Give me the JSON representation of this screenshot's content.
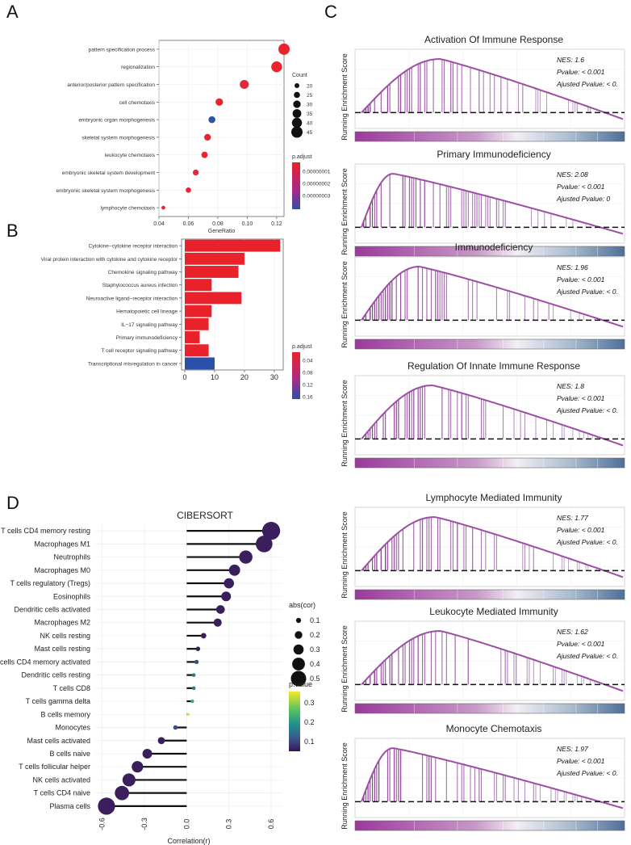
{
  "panels": {
    "a": "A",
    "b": "B",
    "c": "C",
    "d": "D"
  },
  "chart_data": [
    {
      "id": "A",
      "type": "scatter",
      "title": "",
      "xlabel": "GeneRatio",
      "ylabel": "",
      "xlim": [
        0.04,
        0.125
      ],
      "xticks": [
        "0.04",
        "0.06",
        "0.08",
        "0.10",
        "0.12"
      ],
      "xtick_values": [
        0.04,
        0.06,
        0.08,
        0.1,
        0.12
      ],
      "categories": [
        "pattern specification process",
        "regionalization",
        "anterior/posterior pattern specification",
        "cell chemotaxis",
        "embryonic organ morphogenesis",
        "skeletal system morphogenesis",
        "leukocyte chemotaxis",
        "embryonic skeletal system development",
        "embryonic skeletal system morphogenesis",
        "lymphocyte chemotaxis"
      ],
      "x": [
        0.125,
        0.12,
        0.098,
        0.081,
        0.076,
        0.073,
        0.071,
        0.065,
        0.06,
        0.043
      ],
      "count": [
        45,
        43,
        36,
        30,
        28,
        27,
        26,
        24,
        22,
        16
      ],
      "padjust": [
        1e-09,
        1e-09,
        2e-09,
        1e-09,
        2.8e-08,
        1e-09,
        1e-09,
        1.5e-09,
        1.5e-09,
        1e-09
      ],
      "colors": [
        "#e8242e",
        "#e8242e",
        "#e3283a",
        "#e8242e",
        "#2e54a8",
        "#e8242e",
        "#e8242e",
        "#e6273a",
        "#e6273a",
        "#e8242e"
      ],
      "size_legend": {
        "title": "Count",
        "labels": [
          "20",
          "25",
          "30",
          "35",
          "40",
          "45"
        ],
        "values": [
          20,
          25,
          30,
          35,
          40,
          45
        ]
      },
      "color_legend": {
        "title": "p.adjust",
        "labels": [
          "0.00000001",
          "0.00000002",
          "0.00000003"
        ]
      }
    },
    {
      "id": "B",
      "type": "bar",
      "orientation": "horizontal",
      "categories": [
        "Cytokine−cytokine receptor interaction",
        "Viral protein interaction with cytokine and cytokine receptor",
        "Chemokine signaling pathway",
        "Staphylococcus aureus infection",
        "Neuroactive ligand−receptor interaction",
        "Hematopoietic cell lineage",
        "IL−17 signaling pathway",
        "Primary immunodeficiency",
        "T cell receptor signaling pathway",
        "Transcriptional misregulation in cancer"
      ],
      "values": [
        32,
        20,
        18,
        9,
        19,
        9,
        8,
        5,
        8,
        10
      ],
      "colors": [
        "#e8212b",
        "#e8212b",
        "#e8212b",
        "#e8212b",
        "#e8212b",
        "#e8212b",
        "#e8212b",
        "#e8212b",
        "#e8212b",
        "#2b4ea8"
      ],
      "xlim": [
        0,
        33
      ],
      "xticks": [
        "0",
        "10",
        "20",
        "30"
      ],
      "xtick_values": [
        0,
        10,
        20,
        30
      ],
      "color_legend": {
        "title": "p.adjust",
        "labels": [
          "0.04",
          "0.08",
          "0.12",
          "0.16"
        ]
      }
    },
    {
      "id": "C",
      "type": "line",
      "ylabel": "Running Enrichment Score",
      "plots": [
        {
          "title": "Activation Of Immune Response",
          "nes": "NES: 1.6",
          "pvalue": "Pvalue: < 0.001",
          "adj": "Ajusted Pvalue: < 0.",
          "peak": 0.3
        },
        {
          "title": "Primary Immunodeficiency",
          "nes": "NES: 2.08",
          "pvalue": "Pvalue: < 0.001",
          "adj": "Ajusted Pvalue: 0",
          "peak": 0.12
        },
        {
          "title": "Immunodeficiency",
          "nes": "NES: 1.96",
          "pvalue": "Pvalue: < 0.001",
          "adj": "Ajusted Pvalue: < 0.",
          "peak": 0.22
        },
        {
          "title": "Regulation Of Innate Immune Response",
          "nes": "NES: 1.8",
          "pvalue": "Pvalue: < 0.001",
          "adj": "Ajusted Pvalue: < 0.",
          "peak": 0.27
        },
        {
          "title": "Lymphocyte Mediated Immunity",
          "nes": "NES: 1.77",
          "pvalue": "Pvalue: < 0.001",
          "adj": "Ajusted Pvalue: < 0.",
          "peak": 0.28
        },
        {
          "title": "Leukocyte Mediated Immunity",
          "nes": "NES: 1.62",
          "pvalue": "Pvalue: < 0.001",
          "adj": "Ajusted Pvalue: < 0.",
          "peak": 0.3
        },
        {
          "title": "Monocyte Chemotaxis",
          "nes": "NES: 1.97",
          "pvalue": "Pvalue: < 0.001",
          "adj": "Ajusted Pvalue: < 0.",
          "peak": 0.12
        }
      ]
    },
    {
      "id": "D",
      "type": "lollipop",
      "title": "CIBERSORT",
      "xlabel": "Correlation(r)",
      "xlim": [
        -0.65,
        0.68
      ],
      "xticks": [
        "-0.6",
        "-0.3",
        "0.0",
        "0.3",
        "0.6"
      ],
      "xtick_values": [
        -0.6,
        -0.3,
        0,
        0.3,
        0.6
      ],
      "categories": [
        "T cells CD4 memory resting",
        "Macrophages M1",
        "Neutrophils",
        "Macrophages M0",
        "T cells regulatory (Tregs)",
        "Eosinophils",
        "Dendritic cells activated",
        "Macrophages M2",
        "NK cells resting",
        "Mast cells resting",
        "T cells CD4 memory activated",
        "Dendritic cells resting",
        "T cells CD8",
        "T cells gamma delta",
        "B cells memory",
        "Monocytes",
        "Mast cells activated",
        "B cells naive",
        "T cells follicular helper",
        "NK cells activated",
        "T cells CD4 naive",
        "Plasma cells"
      ],
      "values": [
        0.6,
        0.55,
        0.42,
        0.34,
        0.3,
        0.28,
        0.24,
        0.22,
        0.12,
        0.08,
        0.07,
        0.05,
        0.05,
        0.04,
        0.01,
        -0.08,
        -0.18,
        -0.28,
        -0.35,
        -0.41,
        -0.46,
        -0.57
      ],
      "pvalue": [
        0.01,
        0.01,
        0.01,
        0.01,
        0.01,
        0.01,
        0.01,
        0.01,
        0.02,
        0.05,
        0.08,
        0.15,
        0.18,
        0.25,
        0.33,
        0.1,
        0.02,
        0.01,
        0.01,
        0.01,
        0.01,
        0.01
      ],
      "size_legend": {
        "title": "abs(cor)",
        "labels": [
          "0.1",
          "0.2",
          "0.3",
          "0.4",
          "0.5"
        ],
        "values": [
          0.1,
          0.2,
          0.3,
          0.4,
          0.5
        ]
      },
      "color_legend": {
        "title": "p.value",
        "labels": [
          "0.3",
          "0.2",
          "0.1"
        ]
      }
    }
  ]
}
